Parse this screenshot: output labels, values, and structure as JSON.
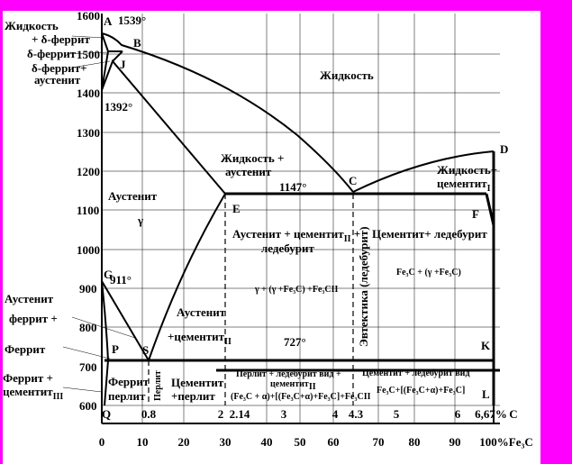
{
  "y_axis": {
    "ticks": [
      "1600",
      "1500",
      "1400",
      "1300",
      "1200",
      "1100",
      "1000",
      "900",
      "800",
      "700",
      "600"
    ]
  },
  "x_axis": {
    "ticks": [
      "0",
      "10",
      "20",
      "30",
      "40",
      "50",
      "60",
      "70",
      "80",
      "90",
      "100%Fe₃C"
    ]
  },
  "top_axis": {
    "ticks": [
      "Q",
      "0.8",
      "2",
      "2.14",
      "3",
      "4",
      "4.3",
      "5",
      "6",
      "6,67%",
      "C"
    ]
  },
  "points": {
    "A": "A",
    "B": "B",
    "J": "J",
    "D": "D",
    "C": "C",
    "E": "E",
    "F": "F",
    "G": "G",
    "P": "P",
    "S": "S",
    "K": "K",
    "L": "L"
  },
  "temps": {
    "t1539": "1539°",
    "t1392": "1392°",
    "t1147": "1147°",
    "t911": "911°",
    "t727": "727°"
  },
  "regions": {
    "liq_delta_1": "Жидкость",
    "liq_delta_2": "+ δ-феррит",
    "delta": "δ-феррит",
    "delta_aus_1": "δ-феррит+",
    "delta_aus_2": "аустенит",
    "liquid": "Жидкость",
    "liq_aus_1": "Жидкость +",
    "liq_aus_2": "аустенит",
    "austenite": "Аустенит",
    "gamma": "γ",
    "liq_cem_1": "Жидкость+",
    "liq_cem_2": "цементит",
    "liq_cem_sub": "I",
    "aus_cem_led_1": "Аустенит + цементит",
    "aus_cem_led_sub": "II",
    "aus_cem_led_plus": " +",
    "aus_cem_led_2": "ледебурит",
    "cem_led": "Цементит+ ледебурит",
    "fe3c_formula": "Fe₃C  + (γ +Fe₃C)",
    "gamma_formula": "γ + (γ +Fe₃C) +Fe₃CII",
    "eutectic": "Эвтектика (ледебурит)",
    "aus_cem2_1": "Аустенит",
    "aus_cem2_2": "+цементит",
    "aus_cem2_sub": "II",
    "aus_fer_1": "Аустенит",
    "aus_fer_2": "феррит +",
    "ferrite": "Феррит",
    "fer_cem3_1": "Феррит +",
    "fer_cem3_2": "цементит",
    "fer_cem3_sub": "III",
    "fer_perl_1": "Феррит",
    "fer_perl_2": "перлит",
    "pearlite": "Перлит",
    "cem_perl_1": "Цементит",
    "cem_perl_2": "+перлит",
    "perl_led_1": "Перлит + ледебурит вид +",
    "perl_led_2": "цементит",
    "perl_led_sub": "II",
    "perl_led_formula": "(Fe₃C + α)+[(Fe₃C+α)+Fe₃C]+Fe₃CII",
    "cem_led_vid": "Цементит + ледебурит вид",
    "cem_led_formula": "Fe₃C+[(Fe₃C+α)+Fe₃C]"
  }
}
